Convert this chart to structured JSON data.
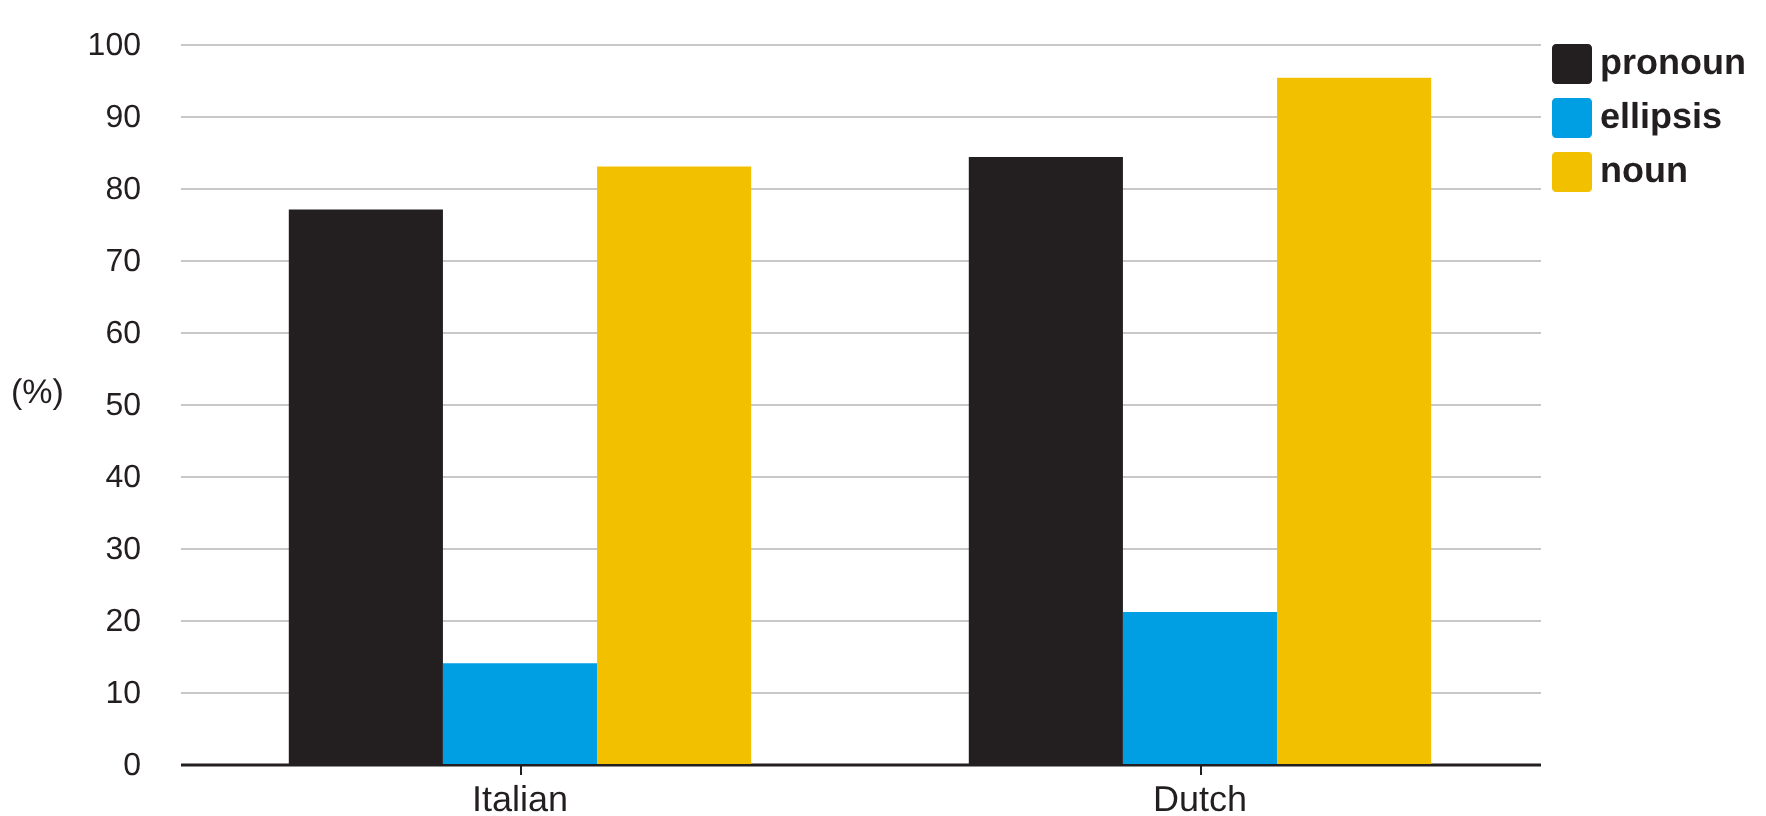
{
  "chart_data": {
    "type": "bar",
    "ylabel": "(%)",
    "categories": [
      "Italian",
      "Dutch"
    ],
    "series": [
      {
        "name": "pronoun",
        "color": "#231f20",
        "values": [
          77,
          84.3
        ]
      },
      {
        "name": "ellipsis",
        "color": "#009fe3",
        "values": [
          14,
          21.1
        ]
      },
      {
        "name": "noun",
        "color": "#f3c000",
        "values": [
          83,
          95.3
        ]
      }
    ],
    "ylim": [
      0,
      100
    ],
    "yticks": [
      0,
      10,
      20,
      30,
      40,
      50,
      60,
      70,
      80,
      90,
      100
    ],
    "grid": "y",
    "legend": "top right"
  }
}
